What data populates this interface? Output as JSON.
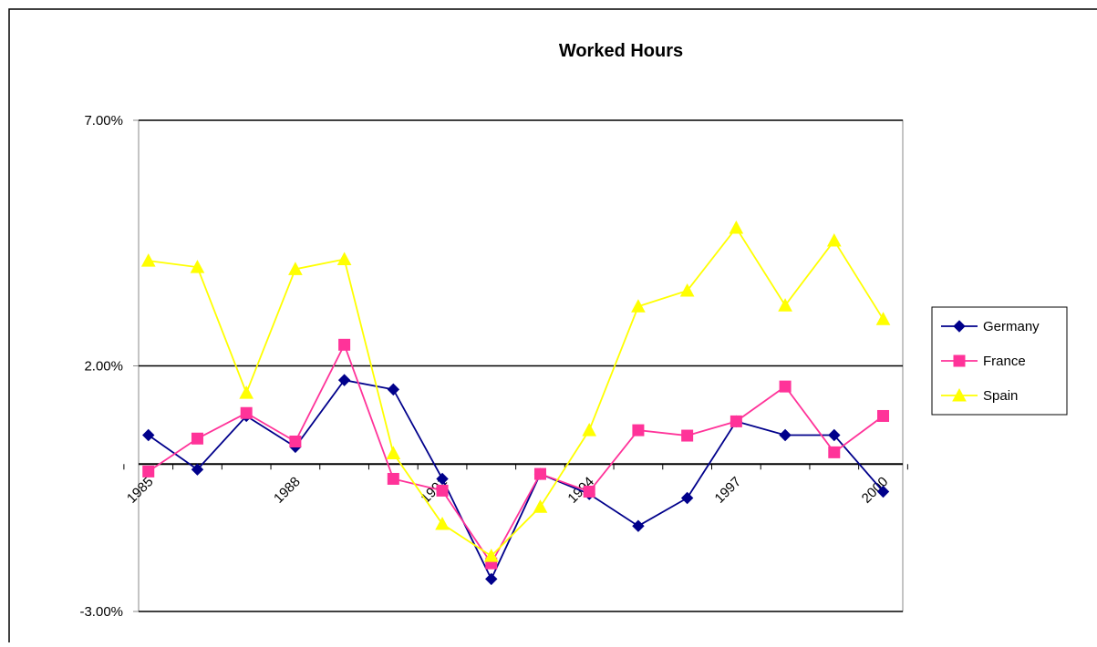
{
  "chart_data": {
    "type": "line",
    "title": "Worked Hours",
    "categories": [
      "1985",
      null,
      null,
      "1988",
      null,
      null,
      "1991",
      null,
      null,
      "1994",
      null,
      null,
      "1997",
      null,
      null,
      "2000"
    ],
    "series": [
      {
        "name": "Germany",
        "color": "#00008b",
        "marker": "diamond",
        "values": [
          0.59,
          -0.11,
          0.98,
          0.35,
          1.71,
          1.52,
          -0.3,
          -2.34,
          -0.2,
          -0.61,
          -1.26,
          -0.69,
          0.87,
          0.59,
          0.59,
          -0.56
        ]
      },
      {
        "name": "France",
        "color": "#ff3399",
        "marker": "square",
        "values": [
          -0.15,
          0.52,
          1.04,
          0.46,
          2.43,
          -0.3,
          -0.54,
          -2.02,
          -0.2,
          -0.56,
          0.69,
          0.58,
          0.87,
          1.58,
          0.24,
          0.98
        ]
      },
      {
        "name": "Spain",
        "color": "#ffff00",
        "marker": "triangle",
        "values": [
          4.14,
          4.01,
          1.45,
          3.97,
          4.17,
          0.22,
          -1.22,
          -1.87,
          -0.87,
          0.69,
          3.21,
          3.53,
          4.81,
          3.23,
          4.55,
          2.95
        ]
      }
    ],
    "ylim": [
      -3,
      7
    ],
    "yticks": [
      {
        "value": -3,
        "label": "-3.00%"
      },
      {
        "value": 2,
        "label": "2.00%"
      },
      {
        "value": 7,
        "label": "7.00%"
      }
    ],
    "grid": true,
    "legend": "right"
  }
}
